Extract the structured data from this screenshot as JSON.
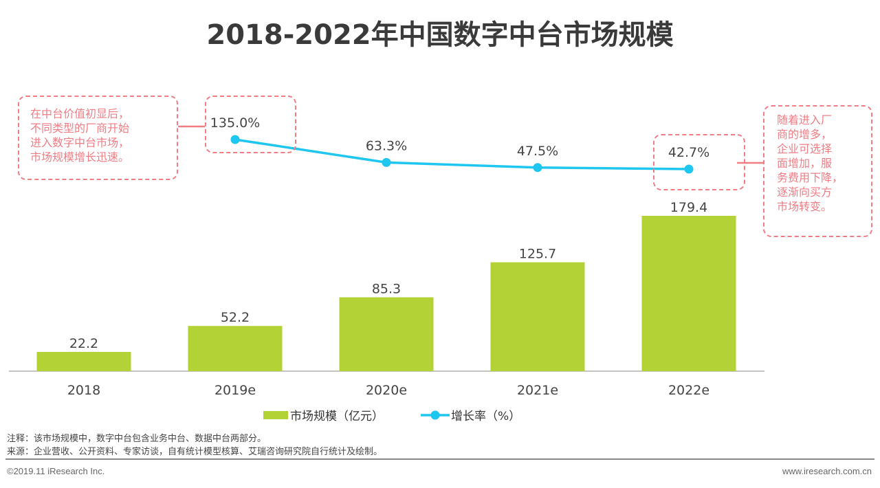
{
  "title": "2018-2022年中国数字中台市场规模",
  "chart_data": {
    "type": "bar+line",
    "categories": [
      "2018",
      "2019e",
      "2020e",
      "2021e",
      "2022e"
    ],
    "series": [
      {
        "name": "市场规模（亿元）",
        "type": "bar",
        "values": [
          22.2,
          52.2,
          85.3,
          125.7,
          179.4
        ],
        "color": "#b2d235"
      },
      {
        "name": "增长率（%）",
        "type": "line",
        "values": [
          null,
          135.0,
          63.3,
          47.5,
          42.7
        ],
        "labels": [
          null,
          "135.0%",
          "63.3%",
          "47.5%",
          "42.7%"
        ],
        "color": "#1fc6ef"
      }
    ],
    "legend": "bottom",
    "grid": false
  },
  "callouts": {
    "left": [
      "在中台价值初显后，",
      "不同类型的厂商开始",
      "进入数字中台市场，",
      "市场规模增长迅速。"
    ],
    "right": [
      "随着进入厂",
      "商的增多，",
      "企业可选择",
      "面增加，服",
      "务费用下降，",
      "逐渐向买方",
      "市场转变。"
    ],
    "color": "#f07c84"
  },
  "notes": {
    "note": "注释：该市场规模中，数字中台包含业务中台、数据中台两部分。",
    "source": "来源：企业营收、公开资料、专家访谈，自有统计模型核算、艾瑞咨询研究院自行统计及绘制。"
  },
  "footer": {
    "left": "©2019.11 iResearch Inc.",
    "right": "www.iresearch.com.cn"
  }
}
